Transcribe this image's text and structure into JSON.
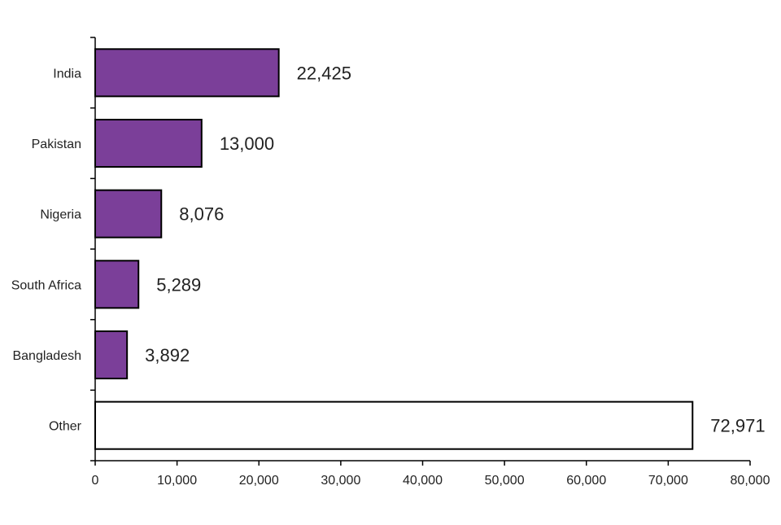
{
  "chart_data": {
    "type": "bar",
    "orientation": "horizontal",
    "categories": [
      "India",
      "Pakistan",
      "Nigeria",
      "South Africa",
      "Bangladesh",
      "Other"
    ],
    "values": [
      22425,
      13000,
      8076,
      5289,
      3892,
      72971
    ],
    "value_labels": [
      "22,425",
      "13,000",
      "8,076",
      "5,289",
      "3,892",
      "72,971"
    ],
    "bar_colors": [
      "#7b3f99",
      "#7b3f99",
      "#7b3f99",
      "#7b3f99",
      "#7b3f99",
      "#ffffff"
    ],
    "bar_stroke": "#000000",
    "xlim": [
      0,
      80000
    ],
    "x_ticks": [
      0,
      10000,
      20000,
      30000,
      40000,
      50000,
      60000,
      70000,
      80000
    ],
    "x_tick_labels": [
      "0",
      "10,000",
      "20,000",
      "30,000",
      "40,000",
      "50,000",
      "60,000",
      "70,000",
      "80,000"
    ],
    "grid": false,
    "title": "",
    "xlabel": "",
    "ylabel": ""
  }
}
